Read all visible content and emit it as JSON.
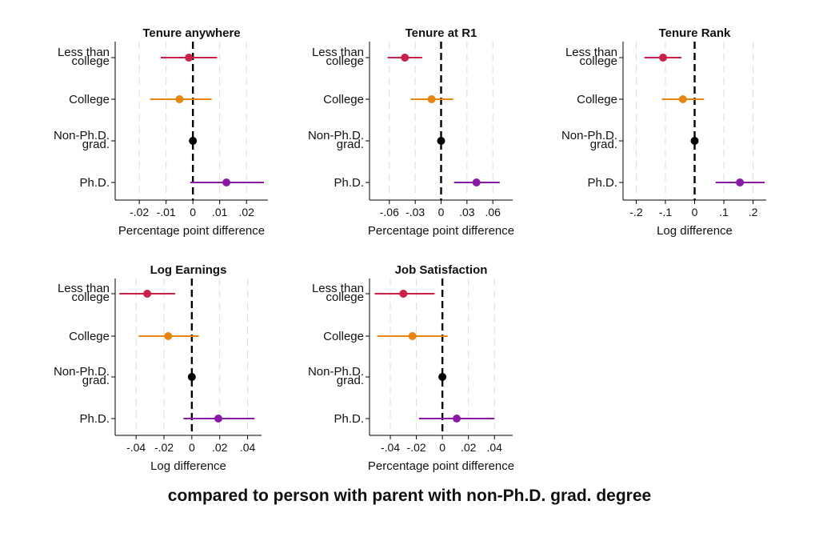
{
  "caption": "compared to person with parent with non-Ph.D. grad. degree",
  "colors": {
    "less_than_college": "#cc1f4a",
    "college": "#e8850f",
    "non_phd_grad": "#000000",
    "phd": "#8a1aa6",
    "gridline": "#dcdcdc"
  },
  "chart_data": [
    {
      "type": "scatter",
      "title": "Tenure anywhere",
      "xlabel": "Percentage point difference",
      "xlim": [
        -0.029,
        0.028
      ],
      "ticks": [
        -0.02,
        -0.01,
        0,
        0.01,
        0.02
      ],
      "tick_labels": [
        "-.02",
        "-.01",
        "0",
        ".01",
        ".02"
      ],
      "categories": [
        [
          "Less than",
          "college"
        ],
        [
          "College"
        ],
        [
          "Non-Ph.D.",
          "grad."
        ],
        [
          "Ph.D."
        ]
      ],
      "estimates": [
        -0.0015,
        -0.005,
        0,
        0.0125
      ],
      "ci_low": [
        -0.012,
        -0.016,
        0,
        -0.001
      ],
      "ci_high": [
        0.009,
        0.007,
        0,
        0.0265
      ]
    },
    {
      "type": "scatter",
      "title": "Tenure at R1",
      "xlabel": "Percentage point difference",
      "xlim": [
        -0.083,
        0.083
      ],
      "ticks": [
        -0.06,
        -0.03,
        0,
        0.03,
        0.06
      ],
      "tick_labels": [
        "-.06",
        "-.03",
        "0",
        ".03",
        ".06"
      ],
      "categories": [
        [
          "Less than",
          "college"
        ],
        [
          "College"
        ],
        [
          "Non-Ph.D.",
          "grad."
        ],
        [
          "Ph.D."
        ]
      ],
      "estimates": [
        -0.042,
        -0.011,
        0,
        0.041
      ],
      "ci_low": [
        -0.062,
        -0.035,
        0,
        0.015
      ],
      "ci_high": [
        -0.022,
        0.014,
        0,
        0.068
      ]
    },
    {
      "type": "scatter",
      "title": "Tenure Rank",
      "xlabel": "Log difference",
      "xlim": [
        -0.245,
        0.245
      ],
      "ticks": [
        -0.2,
        -0.1,
        0,
        0.1,
        0.2
      ],
      "tick_labels": [
        "-.2",
        "-.1",
        "0",
        ".1",
        ".2"
      ],
      "categories": [
        [
          "Less than",
          "college"
        ],
        [
          "College"
        ],
        [
          "Non-Ph.D.",
          "grad."
        ],
        [
          "Ph.D."
        ]
      ],
      "estimates": [
        -0.108,
        -0.04,
        0,
        0.155
      ],
      "ci_low": [
        -0.172,
        -0.112,
        0,
        0.072
      ],
      "ci_high": [
        -0.045,
        0.032,
        0,
        0.24
      ]
    },
    {
      "type": "scatter",
      "title": "Log Earnings",
      "xlabel": "Log difference",
      "xlim": [
        -0.055,
        0.05
      ],
      "ticks": [
        -0.04,
        -0.02,
        0,
        0.02,
        0.04
      ],
      "tick_labels": [
        "-.04",
        "-.02",
        "0",
        ".02",
        ".04"
      ],
      "categories": [
        [
          "Less than",
          "college"
        ],
        [
          "College"
        ],
        [
          "Non-Ph.D.",
          "grad."
        ],
        [
          "Ph.D."
        ]
      ],
      "estimates": [
        -0.032,
        -0.017,
        0,
        0.019
      ],
      "ci_low": [
        -0.052,
        -0.038,
        0,
        -0.006
      ],
      "ci_high": [
        -0.012,
        0.005,
        0,
        0.045
      ]
    },
    {
      "type": "scatter",
      "title": "Job Satisfaction",
      "xlabel": "Percentage point difference",
      "xlim": [
        -0.056,
        0.054
      ],
      "ticks": [
        -0.04,
        -0.02,
        0,
        0.02,
        0.04
      ],
      "tick_labels": [
        "-.04",
        "-.02",
        "0",
        ".02",
        ".04"
      ],
      "categories": [
        [
          "Less than",
          "college"
        ],
        [
          "College"
        ],
        [
          "Non-Ph.D.",
          "grad."
        ],
        [
          "Ph.D."
        ]
      ],
      "estimates": [
        -0.03,
        -0.023,
        0,
        0.011
      ],
      "ci_low": [
        -0.052,
        -0.05,
        0,
        -0.018
      ],
      "ci_high": [
        -0.006,
        0.004,
        0,
        0.04
      ]
    }
  ]
}
